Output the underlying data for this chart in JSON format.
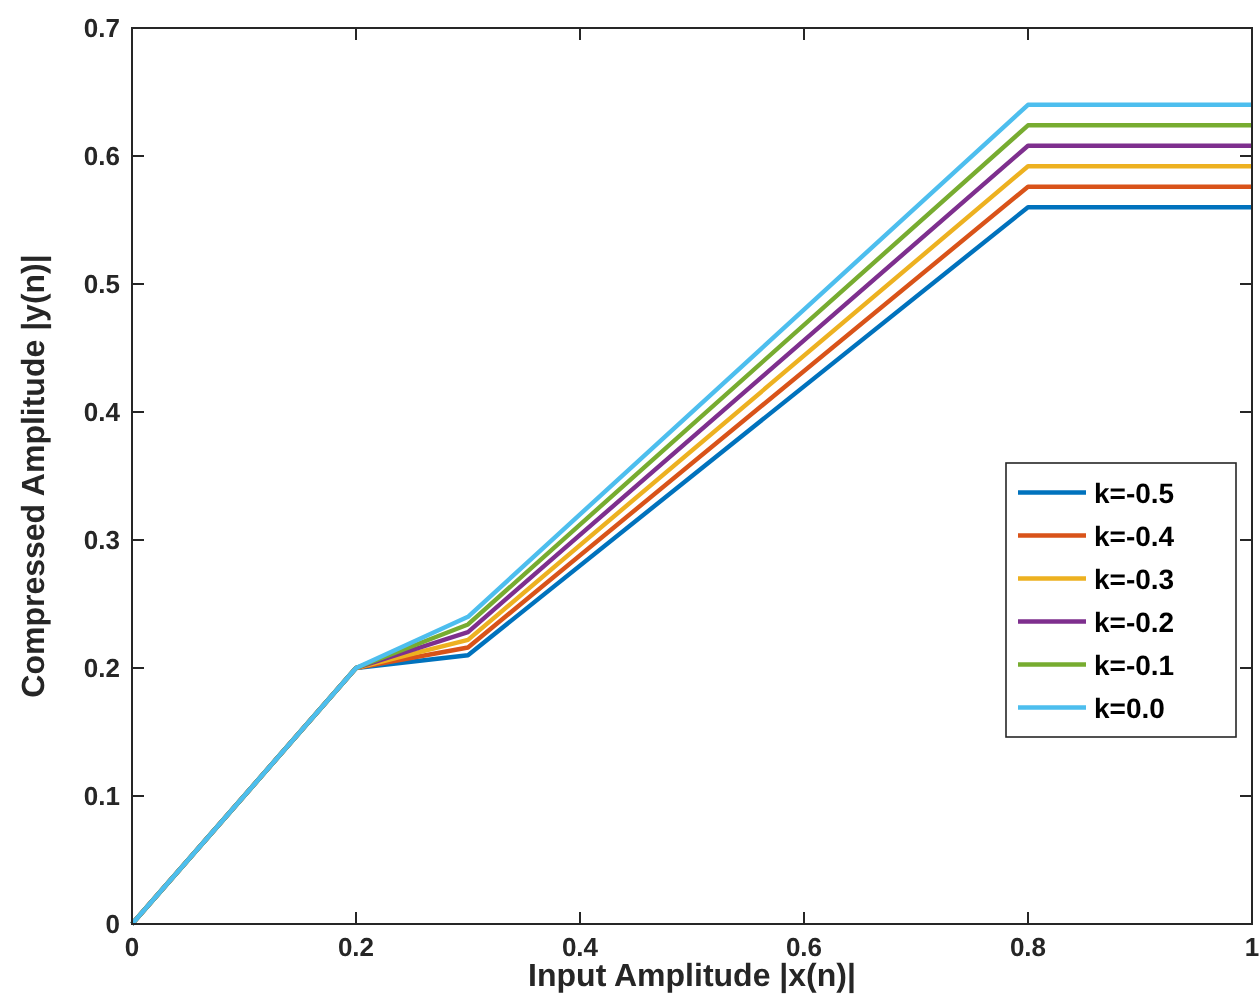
{
  "chart_data": {
    "type": "line",
    "xlabel": "Input Amplitude |x(n)|",
    "ylabel": "Compressed Amplitude |y(n)|",
    "x": [
      0,
      0.2,
      0.3,
      0.8,
      1
    ],
    "xlim": [
      0,
      1
    ],
    "ylim": [
      0,
      0.7
    ],
    "xticks": [
      0,
      0.2,
      0.4,
      0.6,
      0.8,
      1
    ],
    "yticks": [
      0,
      0.1,
      0.2,
      0.3,
      0.4,
      0.5,
      0.6,
      0.7
    ],
    "grid": false,
    "legend": "right",
    "marker": "none",
    "line_style": "solid",
    "series": [
      {
        "name": "k=-0.5",
        "color": "#0072bd",
        "values": [
          0,
          0.2,
          0.21,
          0.56,
          0.56
        ]
      },
      {
        "name": "k=-0.4",
        "color": "#d95319",
        "values": [
          0,
          0.2,
          0.216,
          0.576,
          0.576
        ]
      },
      {
        "name": "k=-0.3",
        "color": "#edb120",
        "values": [
          0,
          0.2,
          0.222,
          0.592,
          0.592
        ]
      },
      {
        "name": "k=-0.2",
        "color": "#7e2f8e",
        "values": [
          0,
          0.2,
          0.228,
          0.608,
          0.608
        ]
      },
      {
        "name": "k=-0.1",
        "color": "#77ac30",
        "values": [
          0,
          0.2,
          0.234,
          0.624,
          0.624
        ]
      },
      {
        "name": "k=0.0",
        "color": "#4dbeee",
        "values": [
          0,
          0.2,
          0.24,
          0.64,
          0.64
        ]
      }
    ]
  }
}
